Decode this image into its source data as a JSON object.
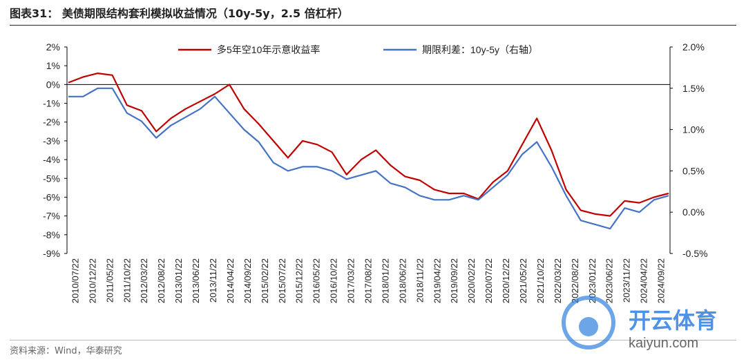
{
  "header": {
    "title": "图表31：  美债期限结构套利模拟收益情况（10y-5y，2.5 倍杠杆）"
  },
  "footer": {
    "source": "资料来源：Wind，华泰研究"
  },
  "watermark": {
    "brand": "开云体育",
    "url": "kaiyun.com"
  },
  "colors": {
    "series_red": "#c00000",
    "series_blue": "#4472c4",
    "axis": "#000000",
    "text": "#222222"
  },
  "chart_data": {
    "type": "line",
    "title": "美债期限结构套利模拟收益情况（10y-5y，2.5 倍杠杆）",
    "x_tick_labels": [
      "2010/07/22",
      "2010/12/22",
      "2011/05/22",
      "2011/10/22",
      "2012/03/22",
      "2012/08/22",
      "2013/01/22",
      "2013/06/22",
      "2013/11/22",
      "2014/04/22",
      "2014/09/22",
      "2015/02/22",
      "2015/07/22",
      "2015/12/22",
      "2016/05/22",
      "2016/10/22",
      "2017/03/22",
      "2017/08/22",
      "2018/01/22",
      "2018/06/22",
      "2018/11/22",
      "2019/04/22",
      "2019/09/22",
      "2020/02/22",
      "2020/07/22",
      "2020/12/22",
      "2021/05/22",
      "2021/10/22",
      "2022/03/22",
      "2022/08/22",
      "2023/01/22",
      "2023/06/22",
      "2023/11/22",
      "2024/04/22",
      "2024/09/22"
    ],
    "y_left": {
      "label": "",
      "unit": "%",
      "lim": [
        -9,
        2
      ],
      "ticks": [
        "2%",
        "1%",
        "0%",
        "-1%",
        "-2%",
        "-3%",
        "-4%",
        "-5%",
        "-6%",
        "-7%",
        "-8%",
        "-9%"
      ]
    },
    "y_right": {
      "label": "右轴",
      "unit": "%",
      "lim": [
        -0.5,
        2.0
      ],
      "ticks": [
        "2.0%",
        "1.5%",
        "1.0%",
        "0.5%",
        "0.0%",
        "-0.5%"
      ]
    },
    "series": [
      {
        "name": "多5年空10年示意收益率",
        "axis": "left",
        "color": "#c00000",
        "values": [
          0.1,
          0.4,
          0.6,
          0.5,
          -1.1,
          -1.4,
          -2.5,
          -1.8,
          -1.3,
          -0.9,
          -0.5,
          0.0,
          -1.3,
          -2.1,
          -3.0,
          -3.9,
          -3.0,
          -3.2,
          -3.6,
          -4.8,
          -4.0,
          -3.5,
          -4.3,
          -4.9,
          -5.1,
          -5.6,
          -5.8,
          -5.8,
          -6.1,
          -5.2,
          -4.6,
          -3.2,
          -1.8,
          -3.5,
          -5.6,
          -6.7,
          -6.9,
          -7.0,
          -6.2,
          -6.3,
          -6.0,
          -5.8
        ]
      },
      {
        "name": "期限利差：10y-5y（右轴）",
        "axis": "right",
        "color": "#4472c4",
        "values": [
          1.4,
          1.4,
          1.5,
          1.5,
          1.2,
          1.1,
          0.9,
          1.05,
          1.15,
          1.25,
          1.4,
          1.2,
          1.0,
          0.85,
          0.6,
          0.5,
          0.55,
          0.55,
          0.5,
          0.4,
          0.45,
          0.5,
          0.35,
          0.3,
          0.2,
          0.15,
          0.15,
          0.2,
          0.15,
          0.3,
          0.45,
          0.7,
          0.85,
          0.55,
          0.2,
          -0.1,
          -0.15,
          -0.2,
          0.05,
          0.0,
          0.15,
          0.2
        ]
      }
    ],
    "legend": {
      "placement": "top-center",
      "entries": [
        "多5年空10年示意收益率",
        "期限利差：10y-5y（右轴）"
      ]
    }
  }
}
